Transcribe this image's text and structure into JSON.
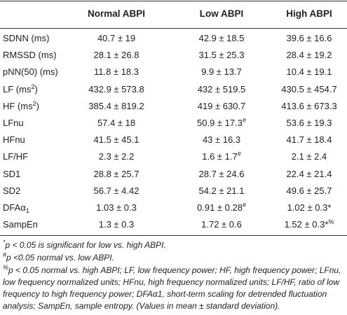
{
  "table": {
    "header": [
      "Normal ABPI",
      "Low ABPI",
      "High ABPI"
    ],
    "rows": [
      [
        {
          "text": "SDNN (ms)"
        },
        {
          "text": "40.7 ± 19"
        },
        {
          "text": "42.9 ± 18.5"
        },
        {
          "text": "39.6 ± 16.6"
        }
      ],
      [
        {
          "text": "RMSSD (ms)"
        },
        {
          "text": "28.1 ± 26.8"
        },
        {
          "text": "31.5 ± 25.3"
        },
        {
          "text": "28.4 ± 19.2"
        }
      ],
      [
        {
          "text": "pNN(50) (ms)"
        },
        {
          "text": "11.8 ± 18.3"
        },
        {
          "text": "9.9 ± 13.7"
        },
        {
          "text": "10.4 ± 19.1"
        }
      ],
      [
        {
          "text": "LF (ms",
          "sup": "2",
          "tail": ")"
        },
        {
          "text": "432.9 ± 573.8"
        },
        {
          "text": "432 ± 519.5"
        },
        {
          "text": "430.5 ± 454.7"
        }
      ],
      [
        {
          "text": "HF (ms",
          "sup": "2",
          "tail": ")"
        },
        {
          "text": "385.4 ± 819.2"
        },
        {
          "text": "419 ± 630.7"
        },
        {
          "text": "413.6 ± 673.3"
        }
      ],
      [
        {
          "text": "LFnu"
        },
        {
          "text": "57.4 ± 18"
        },
        {
          "text": "50.9 ± 17.3",
          "sup": "#"
        },
        {
          "text": "53.6 ± 19.3"
        }
      ],
      [
        {
          "text": "HFnu"
        },
        {
          "text": "41.5 ± 45.1"
        },
        {
          "text": "43 ± 16.3"
        },
        {
          "text": "41.7 ± 18.4"
        }
      ],
      [
        {
          "text": "LF/HF"
        },
        {
          "text": "2.3 ± 2.2"
        },
        {
          "text": "1.6 ± 1.7",
          "sup": "#"
        },
        {
          "text": "2.1 ± 2.4"
        }
      ],
      [
        {
          "text": "SD1"
        },
        {
          "text": "28.8 ± 25.7"
        },
        {
          "text": "28.7 ± 24.6"
        },
        {
          "text": "22.4 ± 21.4"
        }
      ],
      [
        {
          "text": "SD2"
        },
        {
          "text": "56.7 ± 4.42"
        },
        {
          "text": "54.2 ± 21.1"
        },
        {
          "text": "49.6 ± 25.7"
        }
      ],
      [
        {
          "text": "DFAα",
          "sub": "1"
        },
        {
          "text": "1.03 ± 0.3"
        },
        {
          "text": "0.91 ± 0.28",
          "sup": "#"
        },
        {
          "text": "1.02 ± 0.3*"
        }
      ],
      [
        {
          "text": "SampEn"
        },
        {
          "text": "1.3 ± 0.3"
        },
        {
          "text": "1.72 ± 0.6"
        },
        {
          "text": "1.52 ± 0.3*",
          "sup": "%"
        }
      ]
    ],
    "footnotes": [
      {
        "sup": "*",
        "text": "p < 0.05 is significant for low vs. high ABPI."
      },
      {
        "sup": "#",
        "text": "p <0.05 normal vs. low ABPI."
      },
      {
        "sup": "%",
        "text": "p < 0.05 normal vs. high ABPI; LF, low frequency power; HF, high frequency power; LFnu, low frequency normalized units; HFnu, high frequency normalized units; LF/HF, ratio of low frequency to high frequency power; DFAα1, short-term scaling for detrended fluctuation analysis; SampEn, sample entropy. (Values in mean ± standard deviation)."
      }
    ]
  }
}
